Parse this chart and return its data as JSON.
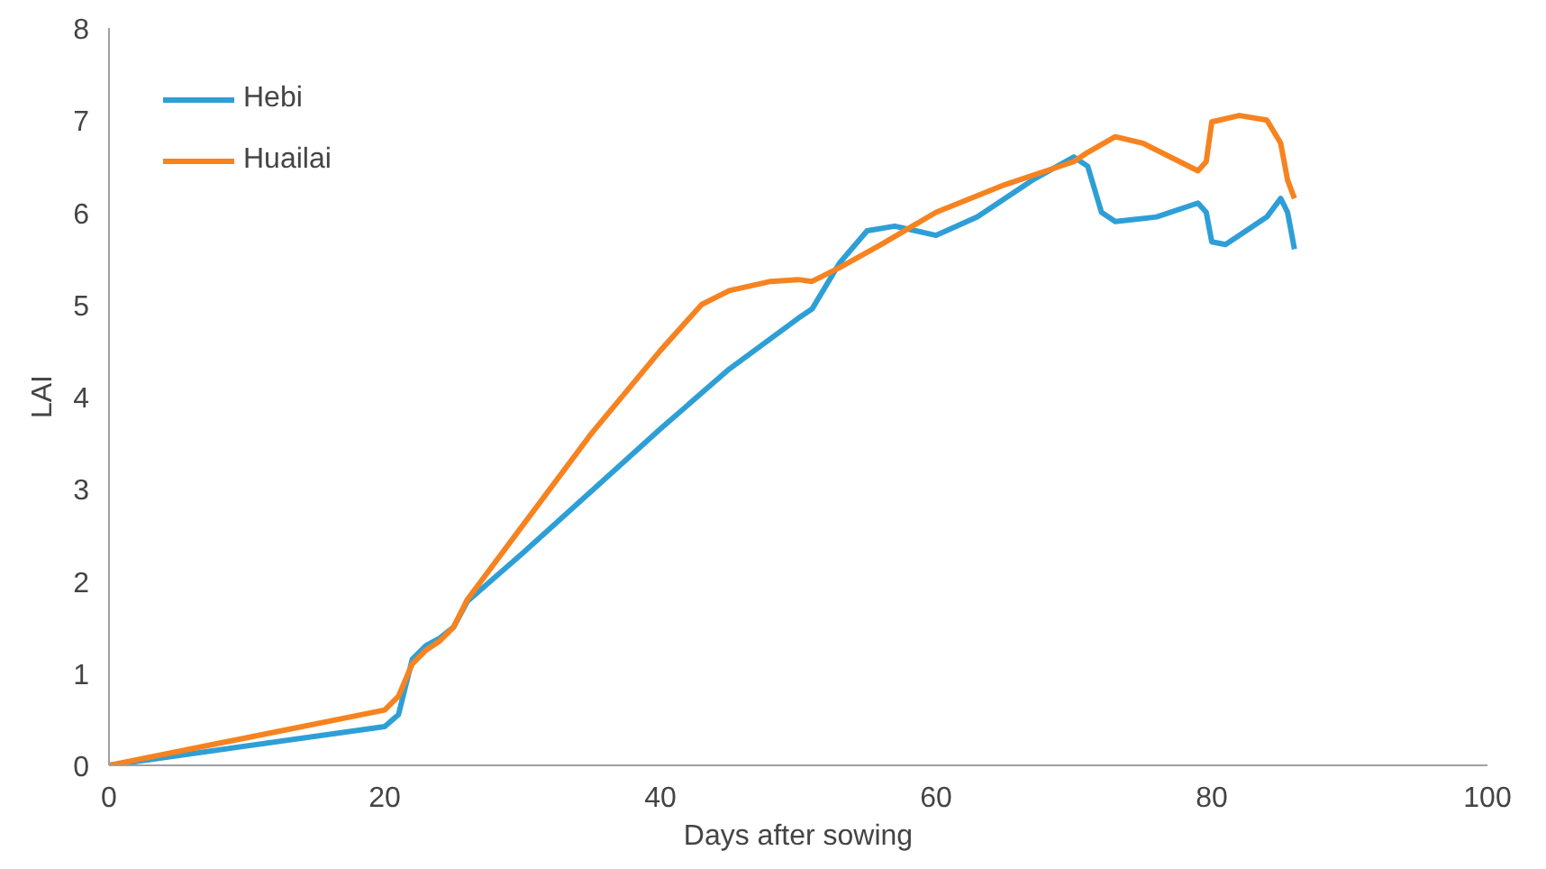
{
  "chart_data": {
    "type": "line",
    "xlabel": "Days after sowing",
    "ylabel": "LAI",
    "xlim": [
      0,
      100
    ],
    "ylim": [
      0,
      8
    ],
    "xticks": [
      0,
      20,
      40,
      60,
      80,
      100
    ],
    "yticks": [
      0,
      1,
      2,
      3,
      4,
      5,
      6,
      7,
      8
    ],
    "grid": false,
    "legend": "top left",
    "line_style": "solid",
    "marker": "none",
    "series": [
      {
        "name": "Hebi",
        "color": "#2e9fd6",
        "x": [
          0,
          20,
          21,
          22,
          23,
          24,
          25,
          26,
          30,
          40,
          45,
          50,
          51,
          53,
          55,
          57,
          60,
          63,
          67,
          70,
          71,
          72,
          73,
          76,
          79,
          79.6,
          80,
          81,
          84,
          85,
          85.5,
          86
        ],
        "values": [
          0,
          0.42,
          0.55,
          1.15,
          1.3,
          1.38,
          1.5,
          1.78,
          2.3,
          3.65,
          4.3,
          4.85,
          4.95,
          5.45,
          5.8,
          5.85,
          5.75,
          5.95,
          6.35,
          6.6,
          6.5,
          6.0,
          5.9,
          5.95,
          6.1,
          6.0,
          5.68,
          5.65,
          5.95,
          6.15,
          6.0,
          5.6
        ]
      },
      {
        "name": "Huailai",
        "color": "#f6831f",
        "x": [
          0,
          20,
          21,
          22,
          23,
          24,
          25,
          26,
          30,
          35,
          40,
          43,
          45,
          48,
          50,
          51,
          53,
          56,
          60,
          65,
          70,
          71,
          73,
          75,
          79,
          79.6,
          80,
          82,
          84,
          85,
          85.5,
          86
        ],
        "values": [
          0,
          0.6,
          0.75,
          1.1,
          1.25,
          1.35,
          1.5,
          1.8,
          2.6,
          3.6,
          4.5,
          5.0,
          5.15,
          5.25,
          5.27,
          5.25,
          5.4,
          5.65,
          6.0,
          6.3,
          6.55,
          6.65,
          6.82,
          6.75,
          6.45,
          6.55,
          6.98,
          7.05,
          7.0,
          6.75,
          6.35,
          6.15
        ]
      }
    ]
  }
}
